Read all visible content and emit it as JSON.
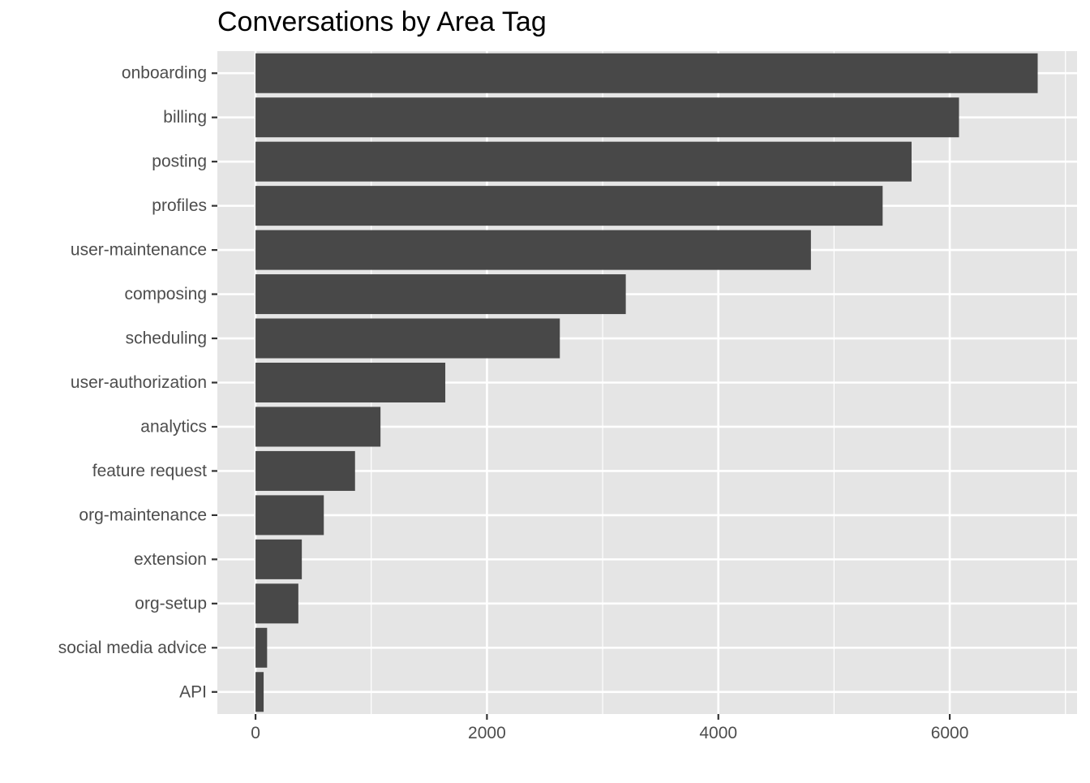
{
  "chart_data": {
    "type": "bar",
    "orientation": "horizontal",
    "title": "Conversations by Area Tag",
    "xlabel": "",
    "ylabel": "",
    "categories": [
      "onboarding",
      "billing",
      "posting",
      "profiles",
      "user-maintenance",
      "composing",
      "scheduling",
      "user-authorization",
      "analytics",
      "feature request",
      "org-maintenance",
      "extension",
      "org-setup",
      "social media advice",
      "API"
    ],
    "values": [
      6760,
      6080,
      5670,
      5420,
      4800,
      3200,
      2630,
      1640,
      1080,
      860,
      590,
      400,
      370,
      100,
      70
    ],
    "xlim": [
      -330,
      7100
    ],
    "x_ticks": [
      0,
      2000,
      4000,
      6000
    ],
    "x_tick_labels": [
      "0",
      "2000",
      "4000",
      "6000"
    ],
    "x_minor_gridlines": [
      1000,
      3000,
      5000,
      7000
    ],
    "grid": true,
    "legend": "none",
    "colors": {
      "bar": "#484848",
      "panel": "#e5e5e5",
      "grid": "#ffffff",
      "text": "#4d4d4d",
      "tick": "#333333"
    }
  }
}
